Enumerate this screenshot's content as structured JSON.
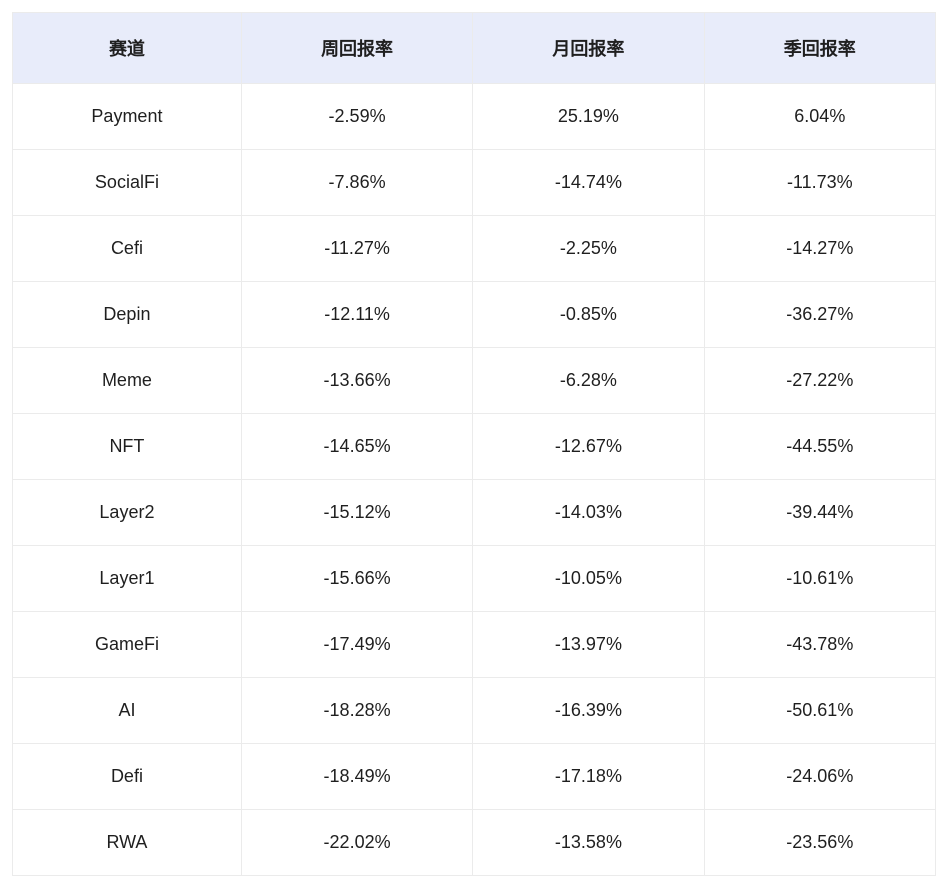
{
  "returns_table": {
    "type": "table",
    "columns": [
      "赛道",
      "周回报率",
      "月回报率",
      "季回报率"
    ],
    "column_widths": [
      "25%",
      "25%",
      "25%",
      "25%"
    ],
    "rows": [
      [
        "Payment",
        "-2.59%",
        "25.19%",
        "6.04%"
      ],
      [
        "SocialFi",
        "-7.86%",
        "-14.74%",
        "-11.73%"
      ],
      [
        "Cefi",
        "-11.27%",
        "-2.25%",
        "-14.27%"
      ],
      [
        "Depin",
        "-12.11%",
        "-0.85%",
        "-36.27%"
      ],
      [
        "Meme",
        "-13.66%",
        "-6.28%",
        "-27.22%"
      ],
      [
        "NFT",
        "-14.65%",
        "-12.67%",
        "-44.55%"
      ],
      [
        "Layer2",
        "-15.12%",
        "-14.03%",
        "-39.44%"
      ],
      [
        "Layer1",
        "-15.66%",
        "-10.05%",
        "-10.61%"
      ],
      [
        "GameFi",
        "-17.49%",
        "-13.97%",
        "-43.78%"
      ],
      [
        "AI",
        "-18.28%",
        "-16.39%",
        "-50.61%"
      ],
      [
        "Defi",
        "-18.49%",
        "-17.18%",
        "-24.06%"
      ],
      [
        "RWA",
        "-22.02%",
        "-13.58%",
        "-23.56%"
      ]
    ],
    "header_bg": "#e8ecfa",
    "border_color": "#ebebeb",
    "text_color": "#1f1f1f",
    "header_fontsize": 18,
    "cell_fontsize": 18,
    "header_fontweight": 700,
    "cell_fontweight": 400,
    "background_color": "#ffffff"
  }
}
